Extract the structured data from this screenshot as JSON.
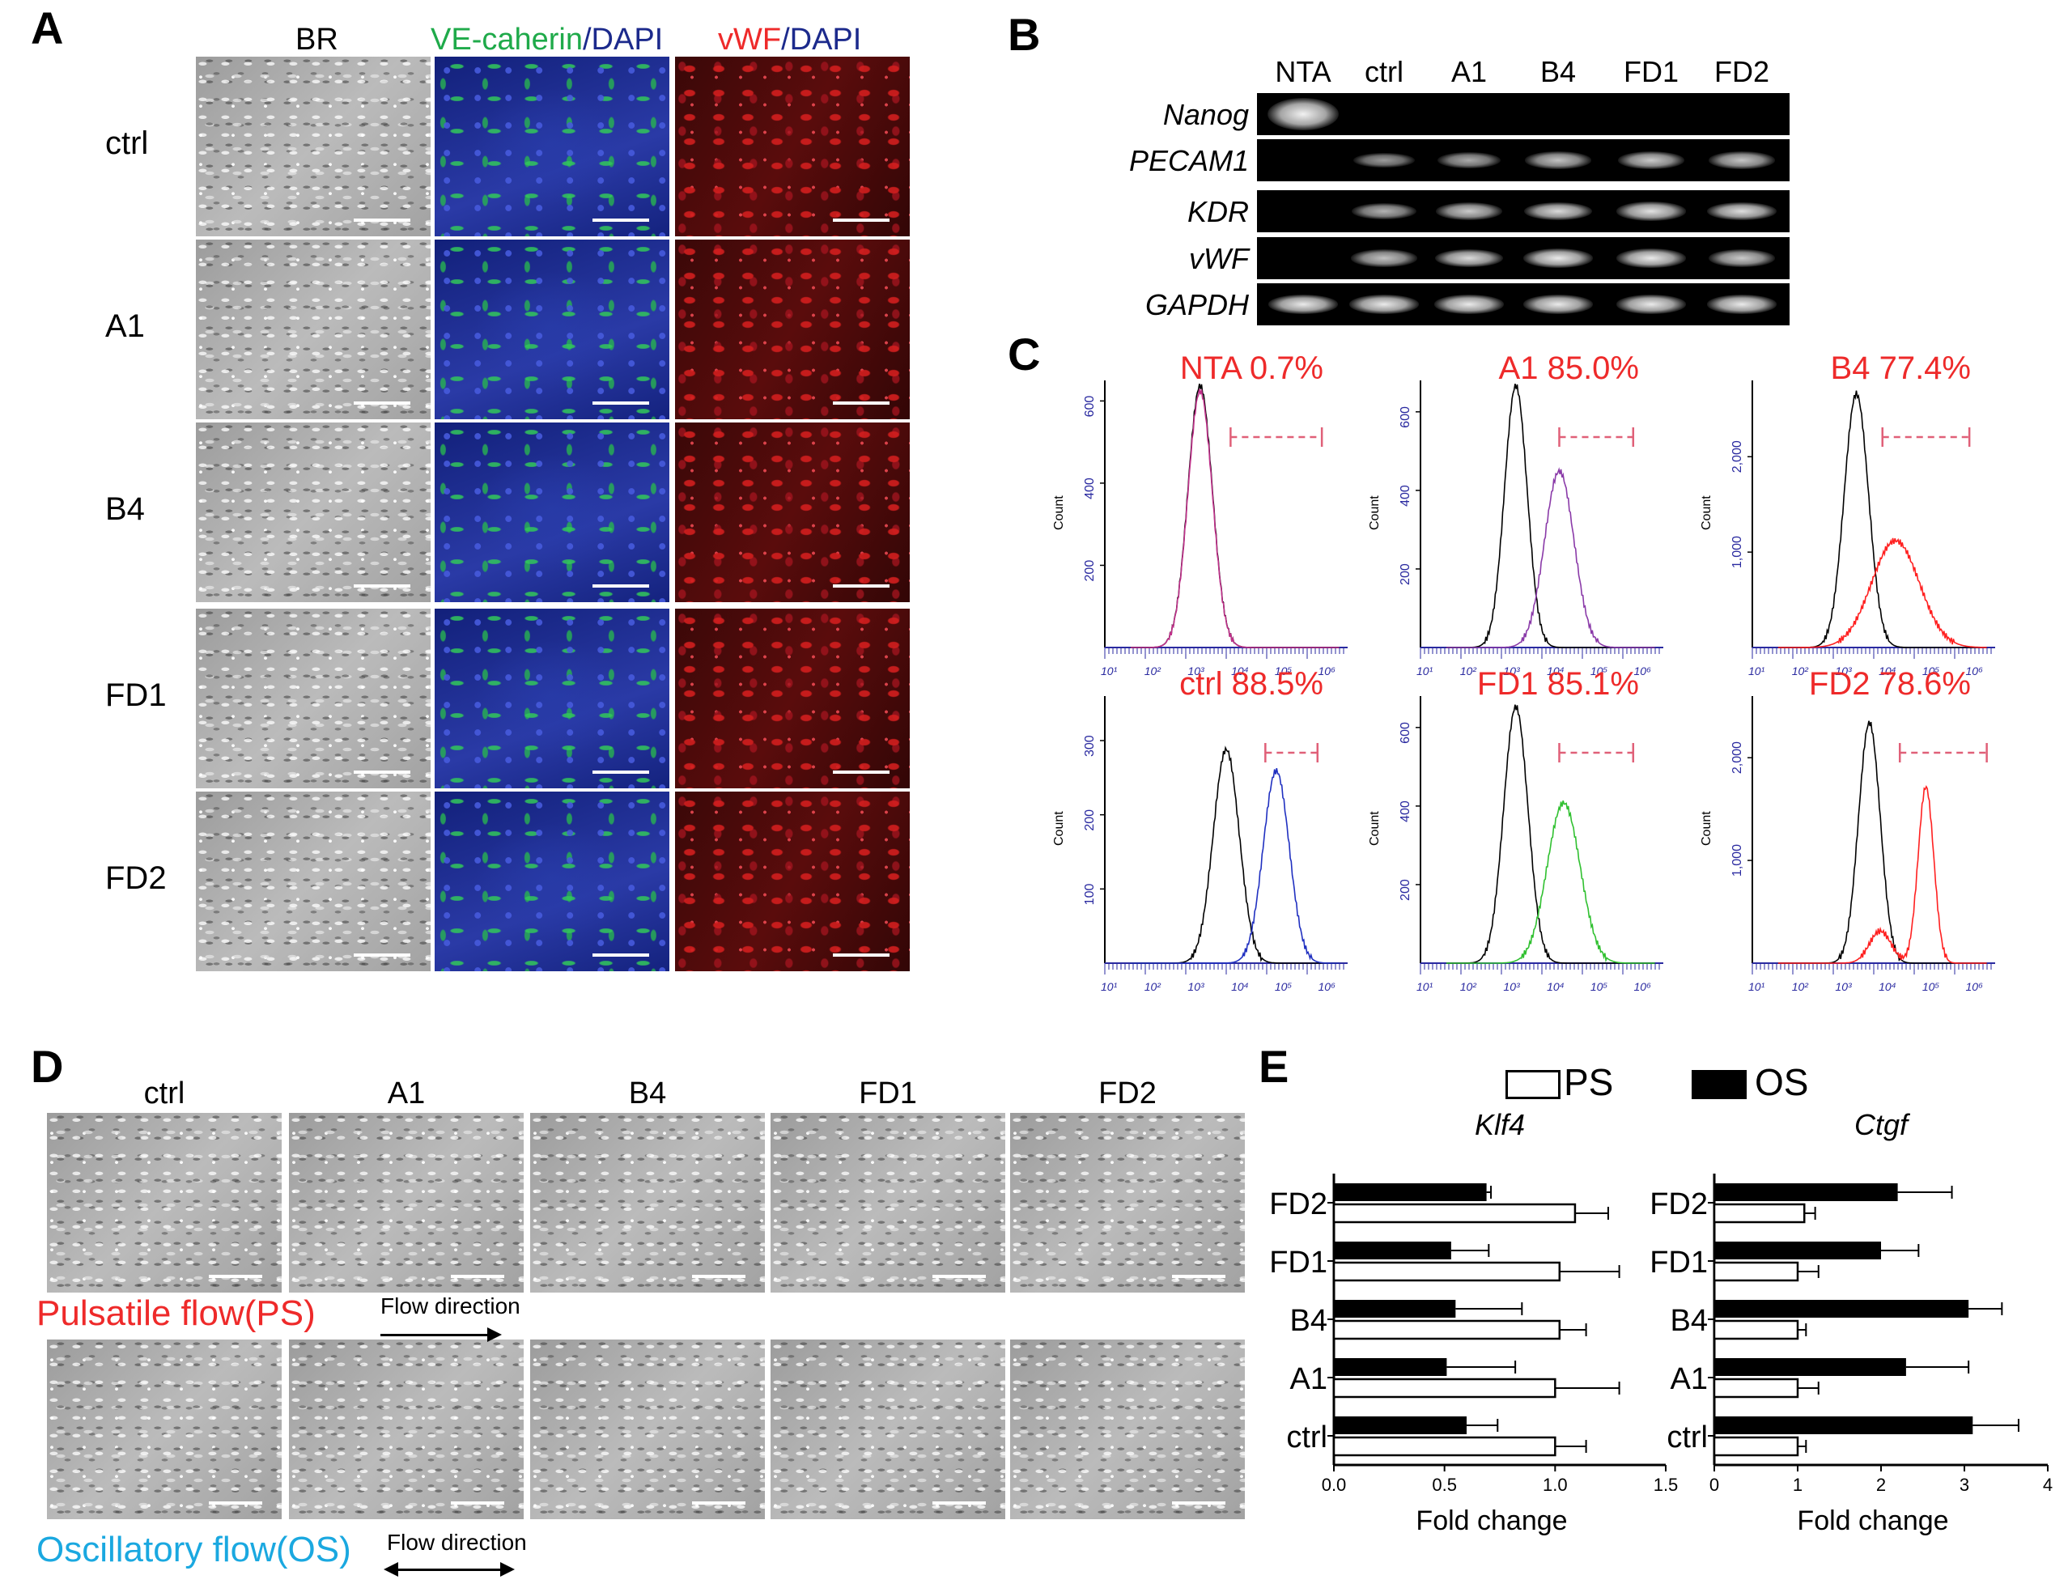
{
  "panel_A": {
    "letter": "A",
    "col_headers": {
      "br": "BR",
      "ve_part1": "VE-caherin",
      "ve_part2": "/DAPI",
      "vwf_part1": "vWF",
      "vwf_part2": "/DAPI"
    },
    "rows": [
      "ctrl",
      "A1",
      "B4",
      "FD1",
      "FD2"
    ]
  },
  "panel_B": {
    "letter": "B",
    "lanes": [
      "NTA",
      "ctrl",
      "A1",
      "B4",
      "FD1",
      "FD2"
    ],
    "genes": [
      "Nanog",
      "PECAM1",
      "KDR",
      "vWF",
      "GAPDH"
    ]
  },
  "panel_C": {
    "letter": "C",
    "histograms": [
      {
        "label": "NTA 0.7%",
        "ymax": 650,
        "yticks": [
          "200",
          "400",
          "600"
        ],
        "sample_color": "#c0308a"
      },
      {
        "label": "A1 85.0%",
        "ymax": 680,
        "yticks": [
          "200",
          "400",
          "600"
        ],
        "sample_color": "#8a3aa8"
      },
      {
        "label": "B4 77.4%",
        "ymax": 2800,
        "yticks": [
          "1,000",
          "2,000"
        ],
        "sample_color": "#ff2020"
      },
      {
        "label": "ctrl 88.5%",
        "ymax": 360,
        "yticks": [
          "100",
          "200",
          "300"
        ],
        "sample_color": "#2030c0"
      },
      {
        "label": "FD1 85.1%",
        "ymax": 680,
        "yticks": [
          "200",
          "400",
          "600"
        ],
        "sample_color": "#30c030"
      },
      {
        "label": "FD2 78.6%",
        "ymax": 2600,
        "yticks": [
          "1,000",
          "2,000"
        ],
        "sample_color": "#ff2020"
      }
    ],
    "y_axis_label": "Count",
    "x_ticks": [
      "10¹",
      "10²",
      "10³",
      "10⁴",
      "10⁵",
      "10⁶"
    ]
  },
  "panel_D": {
    "letter": "D",
    "col_headers": [
      "ctrl",
      "A1",
      "B4",
      "FD1",
      "FD2"
    ],
    "ps_label": "Pulsatile flow(PS)",
    "os_label": "Oscillatory flow(OS)",
    "flow_direction": "Flow direction"
  },
  "panel_E": {
    "letter": "E",
    "legend": {
      "ps": "PS",
      "os": "OS"
    },
    "xlabel": "Fold change",
    "categories": [
      "FD2",
      "FD1",
      "B4",
      "A1",
      "ctrl"
    ]
  },
  "colors": {
    "label_red": "#ee2a2a",
    "label_green": "#1faa4a",
    "label_blue": "#1c2a8c",
    "label_cyan": "#1aa8e0",
    "gate_pink": "#e06078",
    "axis_blue": "#2a2aa0"
  },
  "chart_data": [
    {
      "type": "bar",
      "title": "Klf4",
      "orientation": "horizontal",
      "categories": [
        "FD2",
        "FD1",
        "B4",
        "A1",
        "ctrl"
      ],
      "series": [
        {
          "name": "PS",
          "values": [
            1.09,
            1.02,
            1.02,
            1.0,
            1.0
          ],
          "errors": [
            0.15,
            0.27,
            0.12,
            0.29,
            0.14
          ]
        },
        {
          "name": "OS",
          "values": [
            0.69,
            0.53,
            0.55,
            0.51,
            0.6
          ],
          "errors": [
            0.02,
            0.17,
            0.3,
            0.31,
            0.14
          ]
        }
      ],
      "xlabel": "Fold change",
      "xlim": [
        0,
        1.5
      ],
      "xticks": [
        "0.0",
        "0.5",
        "1.0",
        "1.5"
      ]
    },
    {
      "type": "bar",
      "title": "Ctgf",
      "orientation": "horizontal",
      "categories": [
        "FD2",
        "FD1",
        "B4",
        "A1",
        "ctrl"
      ],
      "series": [
        {
          "name": "PS",
          "values": [
            1.08,
            1.0,
            1.0,
            1.0,
            1.0
          ],
          "errors": [
            0.13,
            0.25,
            0.1,
            0.25,
            0.1
          ]
        },
        {
          "name": "OS",
          "values": [
            2.2,
            2.0,
            3.05,
            2.3,
            3.1
          ],
          "errors": [
            0.65,
            0.45,
            0.4,
            0.75,
            0.55
          ]
        }
      ],
      "xlabel": "Fold change",
      "xlim": [
        0,
        4
      ],
      "xticks": [
        "0",
        "1",
        "2",
        "3",
        "4"
      ]
    }
  ]
}
